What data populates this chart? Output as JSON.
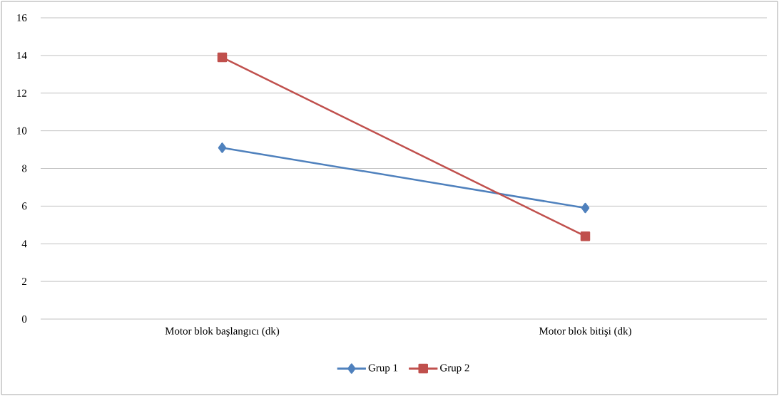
{
  "chart_data": {
    "type": "line",
    "categories": [
      "Motor blok başlangıcı (dk)",
      "Motor blok bitişi (dk)"
    ],
    "series": [
      {
        "name": "Grup 1",
        "color": "#4f81bd",
        "values": [
          9.1,
          5.9
        ],
        "marker": "diamond"
      },
      {
        "name": "Grup 2",
        "color": "#c0504d",
        "values": [
          13.9,
          4.4
        ],
        "marker": "square"
      }
    ],
    "ylim": [
      0,
      16
    ],
    "yticks": [
      0,
      2,
      4,
      6,
      8,
      10,
      12,
      14,
      16
    ],
    "grid": "y",
    "legend": "bottom"
  }
}
